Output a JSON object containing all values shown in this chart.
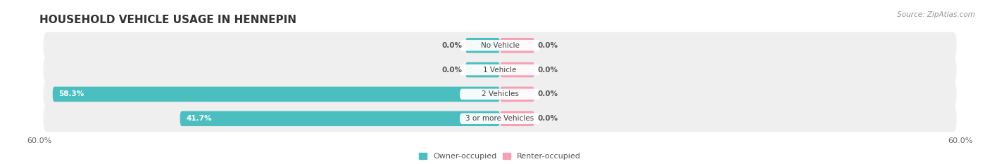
{
  "title": "HOUSEHOLD VEHICLE USAGE IN HENNEPIN",
  "source": "Source: ZipAtlas.com",
  "categories": [
    "No Vehicle",
    "1 Vehicle",
    "2 Vehicles",
    "3 or more Vehicles"
  ],
  "owner_values": [
    0.0,
    0.0,
    58.3,
    41.7
  ],
  "renter_values": [
    0.0,
    0.0,
    0.0,
    0.0
  ],
  "owner_color": "#4BBFBF",
  "renter_color": "#F5A0B5",
  "row_bg_color": "#EFEFEF",
  "axis_max": 60.0,
  "title_fontsize": 11,
  "source_fontsize": 7.5,
  "tick_fontsize": 8,
  "category_fontsize": 7.5,
  "value_fontsize": 7.5,
  "legend_fontsize": 8,
  "small_bar_width": 4.5
}
